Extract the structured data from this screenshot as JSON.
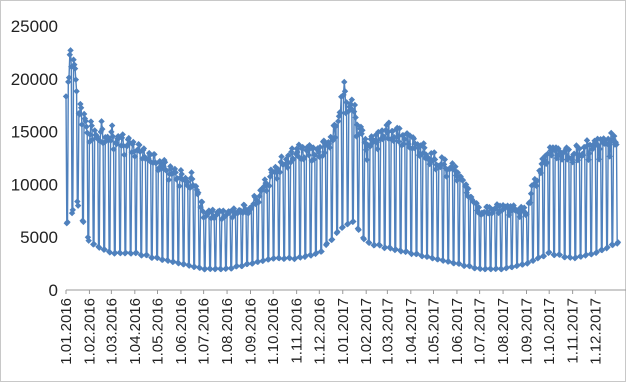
{
  "chart_data": {
    "type": "line",
    "title": "",
    "xlabel": "",
    "ylabel": "",
    "ylim": [
      0,
      25000
    ],
    "grid": false,
    "legend": "none",
    "y_ticks": [
      "0",
      "5000",
      "10000",
      "15000",
      "20000",
      "25000"
    ],
    "x_ticks": [
      "1.01.2016",
      "1.02.2016",
      "1.03.2016",
      "1.04.2016",
      "1.05.2016",
      "1.06.2016",
      "1.07.2016",
      "1.08.2016",
      "1.09.2016",
      "1.10.2016",
      "1.11.2016",
      "1.12.2016",
      "1.01.2017",
      "1.02.2017",
      "1.03.2017",
      "1.04.2017",
      "1.05.2017",
      "1.06.2017",
      "1.07.2017",
      "1.08.2017",
      "1.09.2017",
      "1.10.2017",
      "1.11.2017",
      "1.12.2017"
    ],
    "x_range": [
      "2016-01-01",
      "2017-12-31"
    ],
    "series_color": "#4f81bd",
    "series": [
      {
        "name": "",
        "marker": "diamond",
        "weekly_pattern": "daily values alternate between an upper band (weekdays) and a lower band (weekends)",
        "upper_envelope": [
          [
            "2016-01-01",
            19500
          ],
          [
            "2016-01-08",
            23500
          ],
          [
            "2016-01-20",
            17500
          ],
          [
            "2016-02-01",
            15500
          ],
          [
            "2016-03-01",
            15000
          ],
          [
            "2016-04-01",
            14000
          ],
          [
            "2016-05-01",
            12500
          ],
          [
            "2016-06-01",
            11000
          ],
          [
            "2016-06-20",
            10500
          ],
          [
            "2016-07-01",
            7500
          ],
          [
            "2016-08-01",
            7500
          ],
          [
            "2016-09-01",
            8000
          ],
          [
            "2016-10-01",
            11500
          ],
          [
            "2016-11-01",
            13500
          ],
          [
            "2016-12-01",
            13500
          ],
          [
            "2016-12-20",
            15000
          ],
          [
            "2017-01-01",
            19000
          ],
          [
            "2017-01-12",
            18000
          ],
          [
            "2017-02-01",
            14000
          ],
          [
            "2017-03-01",
            15500
          ],
          [
            "2017-04-01",
            14500
          ],
          [
            "2017-05-01",
            12500
          ],
          [
            "2017-06-01",
            11500
          ],
          [
            "2017-07-01",
            7500
          ],
          [
            "2017-08-01",
            8000
          ],
          [
            "2017-09-01",
            7500
          ],
          [
            "2017-09-10",
            10000
          ],
          [
            "2017-10-01",
            13500
          ],
          [
            "2017-11-01",
            13000
          ],
          [
            "2017-12-01",
            14000
          ],
          [
            "2017-12-31",
            14500
          ]
        ],
        "lower_envelope": [
          [
            "2016-01-01",
            6000
          ],
          [
            "2016-01-15",
            8500
          ],
          [
            "2016-02-01",
            4500
          ],
          [
            "2016-03-01",
            3500
          ],
          [
            "2016-04-01",
            3500
          ],
          [
            "2016-05-01",
            3000
          ],
          [
            "2016-06-01",
            2500
          ],
          [
            "2016-07-01",
            2000
          ],
          [
            "2016-08-01",
            2000
          ],
          [
            "2016-09-01",
            2500
          ],
          [
            "2016-10-01",
            3000
          ],
          [
            "2016-11-01",
            3000
          ],
          [
            "2016-12-01",
            3500
          ],
          [
            "2017-01-01",
            6000
          ],
          [
            "2017-01-15",
            6500
          ],
          [
            "2017-02-01",
            4500
          ],
          [
            "2017-03-01",
            4000
          ],
          [
            "2017-04-01",
            3500
          ],
          [
            "2017-05-01",
            3000
          ],
          [
            "2017-06-01",
            2500
          ],
          [
            "2017-07-01",
            2000
          ],
          [
            "2017-08-01",
            2000
          ],
          [
            "2017-09-01",
            2500
          ],
          [
            "2017-10-01",
            3500
          ],
          [
            "2017-11-01",
            3000
          ],
          [
            "2017-12-01",
            3500
          ],
          [
            "2017-12-31",
            4500
          ]
        ]
      }
    ]
  }
}
